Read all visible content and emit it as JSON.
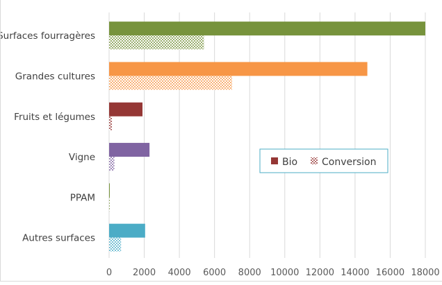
{
  "chart_data": {
    "type": "bar",
    "orientation": "horizontal",
    "categories": [
      "Surfaces fourragères",
      "Grandes cultures",
      "Fruits et légumes",
      "Vigne",
      "PPAM",
      "Autres surfaces"
    ],
    "series": [
      {
        "name": "Bio",
        "pattern": "solid",
        "values": [
          18000,
          14700,
          1900,
          2300,
          40,
          2050
        ]
      },
      {
        "name": "Conversion",
        "pattern": "dotted",
        "values": [
          5400,
          7000,
          160,
          300,
          20,
          680
        ]
      }
    ],
    "category_colors": [
      "#77933c",
      "#f79646",
      "#953735",
      "#8064a2",
      "#77933c",
      "#4bacc6"
    ],
    "legend_swatch_colors": {
      "Bio": "#953735",
      "Conversion": "#953735"
    },
    "xlim": [
      0,
      18000
    ],
    "xticks": [
      0,
      2000,
      4000,
      6000,
      8000,
      10000,
      12000,
      14000,
      16000,
      18000
    ],
    "grid": true,
    "legend_position": "right-center",
    "legend_border_color": "#4bacc6",
    "title": "",
    "xlabel": "",
    "ylabel": ""
  }
}
